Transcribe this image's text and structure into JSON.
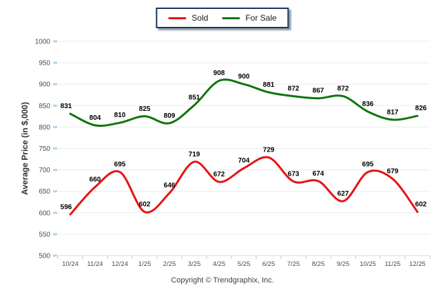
{
  "legend": {
    "items": [
      {
        "label": "Sold",
        "color": "#e81212"
      },
      {
        "label": "For Sale",
        "color": "#0e760e"
      }
    ]
  },
  "footer": {
    "copyright": "Copyright © Trendgraphix, Inc."
  },
  "chart_data": {
    "type": "line",
    "title": "",
    "xlabel": "",
    "ylabel": "Average Price (in $,000)",
    "ylim": [
      500,
      1000
    ],
    "yticks": [
      500,
      550,
      600,
      650,
      700,
      750,
      800,
      850,
      900,
      950,
      1000
    ],
    "grid": true,
    "legend_position": "top-center",
    "categories": [
      "10/24",
      "11/24",
      "12/24",
      "1/25",
      "2/25",
      "3/25",
      "4/25",
      "5/25",
      "6/25",
      "7/25",
      "8/25",
      "9/25",
      "10/25",
      "11/25",
      "12/25"
    ],
    "series": [
      {
        "name": "Sold",
        "color": "#e81212",
        "values": [
          596,
          660,
          695,
          602,
          646,
          719,
          672,
          704,
          729,
          673,
          674,
          627,
          695,
          679,
          602
        ]
      },
      {
        "name": "For Sale",
        "color": "#0e760e",
        "values": [
          831,
          804,
          810,
          825,
          809,
          851,
          908,
          900,
          881,
          872,
          867,
          872,
          836,
          817,
          826
        ]
      }
    ],
    "colors": {
      "gridline": "#ececec",
      "axis_line": "#d9d9d9",
      "tick_label": "#4d4d4d",
      "data_label": "#000000",
      "y_axis_ticks_highlight": "#a9d7f5",
      "legend_border": "#17375e"
    }
  }
}
